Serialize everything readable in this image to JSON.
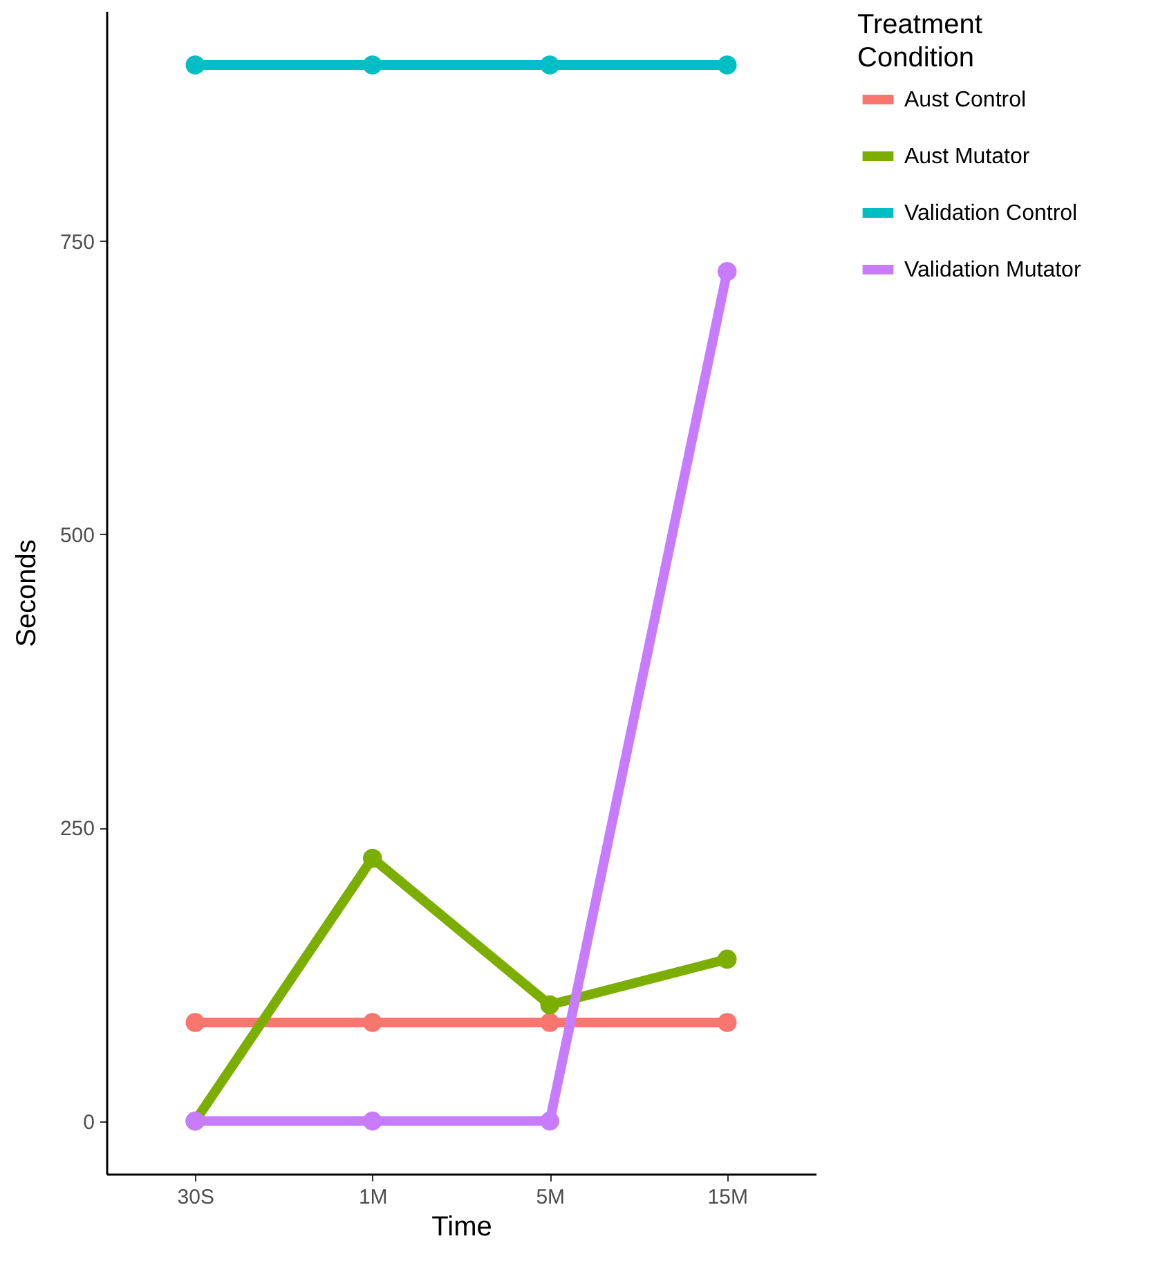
{
  "chart_data": {
    "type": "line",
    "xlabel": "Time",
    "ylabel": "Seconds",
    "legend_title": "Treatment Condition",
    "categories": [
      "30S",
      "1M",
      "5M",
      "15M"
    ],
    "series": [
      {
        "name": "Aust Control",
        "color": "#f8766d",
        "values": [
          84,
          84,
          84,
          84
        ]
      },
      {
        "name": "Aust Mutator",
        "color": "#7cae00",
        "values": [
          0,
          224,
          99,
          138
        ]
      },
      {
        "name": "Validation Control",
        "color": "#00bfc4",
        "values": [
          900,
          900,
          900,
          900
        ]
      },
      {
        "name": "Validation Mutator",
        "color": "#c77cff",
        "values": [
          0,
          0,
          0,
          724
        ]
      }
    ],
    "ylim": [
      -45,
      946
    ],
    "yticks": [
      0,
      250,
      500,
      750
    ],
    "grid": false,
    "legend": "right",
    "marker": "circle",
    "line_style": "solid"
  }
}
